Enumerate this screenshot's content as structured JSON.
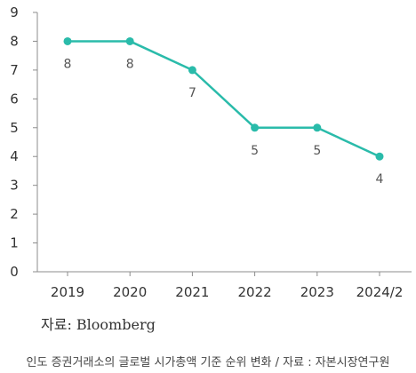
{
  "chart_data": {
    "type": "line",
    "categories": [
      "2019",
      "2020",
      "2021",
      "2022",
      "2023",
      "2024/2"
    ],
    "series": [
      {
        "values": [
          8,
          8,
          7,
          5,
          5,
          4
        ]
      }
    ],
    "data_labels": [
      "8",
      "8",
      "7",
      "5",
      "5",
      "4"
    ],
    "ylim": [
      0,
      9
    ],
    "yticks": [
      "0",
      "1",
      "2",
      "3",
      "4",
      "5",
      "6",
      "7",
      "8",
      "9"
    ],
    "grid": false,
    "line_color": "#2ABBAA",
    "axis_color": "#8C8C8C"
  },
  "source_text": "자료: Bloomberg",
  "caption": "인도 증권거래소의 글로벌 시가총액 기준 순위 변화 / 자료 : 자본시장연구원"
}
